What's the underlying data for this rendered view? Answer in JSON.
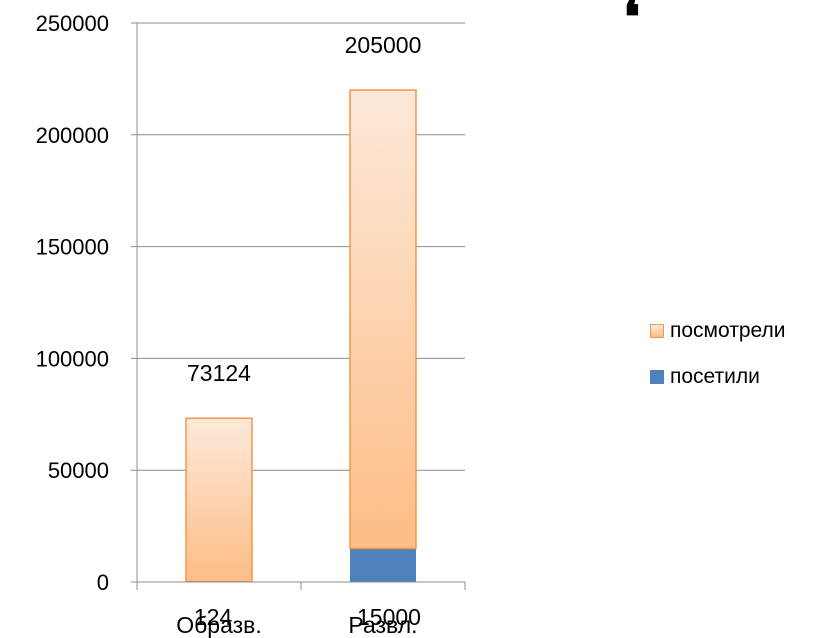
{
  "chart_data": {
    "type": "bar",
    "stacked": true,
    "categories": [
      "Образв.",
      "Развл."
    ],
    "series": [
      {
        "name": "посетили",
        "values": [
          124,
          15000
        ],
        "color": "#4f81bd",
        "data_labels": [
          "124",
          "15000"
        ]
      },
      {
        "name": "посмотрели",
        "values": [
          73124,
          205000
        ],
        "color": "#fdbf8a",
        "border_color": "#f79646",
        "data_labels": [
          "73124",
          "205000"
        ]
      }
    ],
    "ylim": [
      0,
      250000
    ],
    "yticks": [
      0,
      50000,
      100000,
      150000,
      200000,
      250000
    ],
    "grid": true,
    "legend_position": "right",
    "legend_order": [
      "посмотрели",
      "посетили"
    ],
    "title": "",
    "xlabel": "",
    "ylabel": ""
  },
  "decoration": {
    "corner_mark": "❛"
  }
}
